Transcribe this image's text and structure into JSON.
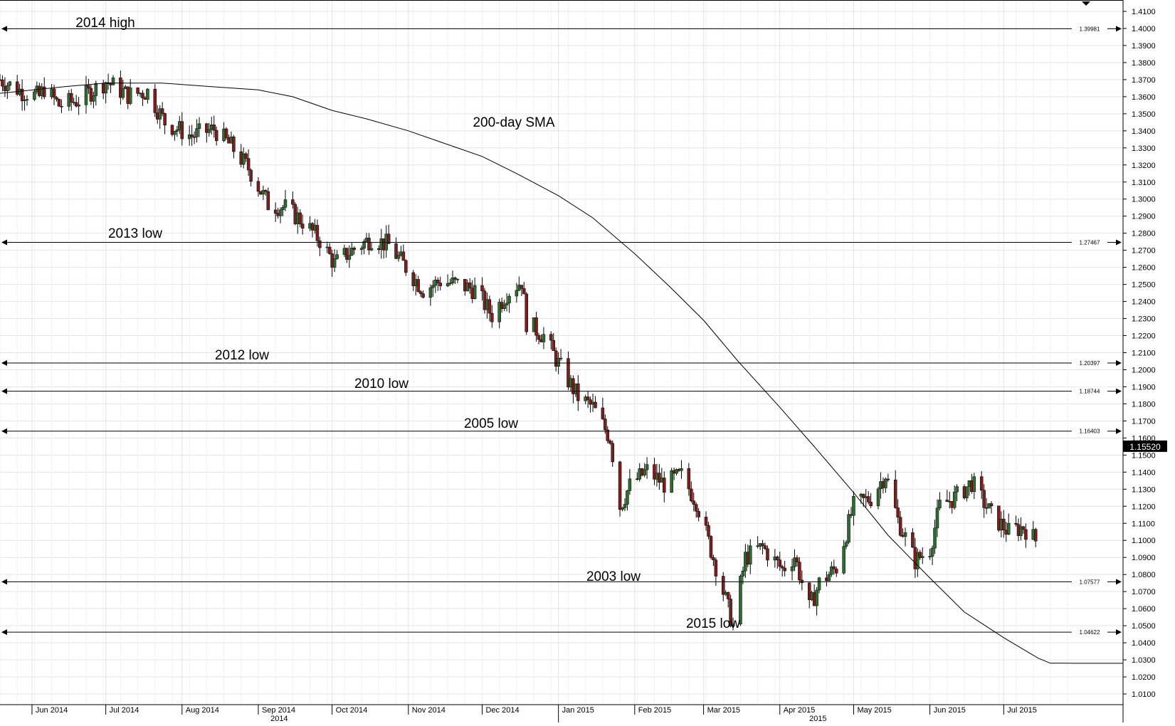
{
  "chart_data": {
    "type": "candlestick",
    "title": "",
    "xlabel": "",
    "ylabel": "",
    "ylim": [
      1.0,
      1.415
    ],
    "y_ticks": [
      "1.4100",
      "1.4000",
      "1.3900",
      "1.3800",
      "1.3700",
      "1.3600",
      "1.3500",
      "1.3400",
      "1.3300",
      "1.3200",
      "1.3100",
      "1.3000",
      "1.2900",
      "1.2800",
      "1.2700",
      "1.2600",
      "1.2500",
      "1.2400",
      "1.2300",
      "1.2200",
      "1.2100",
      "1.2000",
      "1.1900",
      "1.1800",
      "1.1700",
      "1.1600",
      "1.1500",
      "1.1400",
      "1.1300",
      "1.1200",
      "1.1100",
      "1.1000",
      "1.0900",
      "1.0800",
      "1.0700",
      "1.0600",
      "1.0500",
      "1.0400",
      "1.0300",
      "1.0200",
      "1.0100"
    ],
    "x_months": [
      "Jun 2014",
      "Jul 2014",
      "Aug 2014",
      "Sep 2014",
      "Oct 2014",
      "Nov 2014",
      "Dec 2014",
      "Jan 2015",
      "Feb 2015",
      "Mar 2015",
      "Apr 2015",
      "May 2015",
      "Jun 2015",
      "Jul 2015"
    ],
    "x_years": [
      "2014",
      "2015"
    ],
    "grid": true,
    "current_value": "1.15520",
    "levels": [
      {
        "label": "2014 high",
        "value": 1.39981,
        "tag": "1.39981"
      },
      {
        "label": "2013 low",
        "value": 1.27467,
        "tag": "1.27467"
      },
      {
        "label": "2012 low",
        "value": 1.20397,
        "tag": "1.20397"
      },
      {
        "label": "2010 low",
        "value": 1.18744,
        "tag": "1.18744"
      },
      {
        "label": "2005 low",
        "value": 1.16403,
        "tag": "1.16403"
      },
      {
        "label": "2003 low",
        "value": 1.07577,
        "tag": "1.07577"
      },
      {
        "label": "2015 low",
        "value": 1.04622,
        "tag": "1.04622"
      }
    ],
    "sma": {
      "label": "200-day SMA",
      "points": [
        [
          "2014-05-19",
          1.362
        ],
        [
          "2014-06-15",
          1.366
        ],
        [
          "2014-07-01",
          1.368
        ],
        [
          "2014-07-24",
          1.368
        ],
        [
          "2014-08-12",
          1.366
        ],
        [
          "2014-09-01",
          1.364
        ],
        [
          "2014-09-15",
          1.36
        ],
        [
          "2014-10-01",
          1.352
        ],
        [
          "2014-10-15",
          1.347
        ],
        [
          "2014-11-01",
          1.34
        ],
        [
          "2014-11-15",
          1.333
        ],
        [
          "2014-12-01",
          1.325
        ],
        [
          "2014-12-15",
          1.315
        ],
        [
          "2015-01-01",
          1.302
        ],
        [
          "2015-01-15",
          1.289
        ],
        [
          "2015-02-01",
          1.268
        ],
        [
          "2015-02-15",
          1.249
        ],
        [
          "2015-03-01",
          1.229
        ],
        [
          "2015-03-15",
          1.205
        ],
        [
          "2015-04-01",
          1.178
        ],
        [
          "2015-04-15",
          1.155
        ],
        [
          "2015-05-01",
          1.128
        ],
        [
          "2015-05-15",
          1.103
        ],
        [
          "2015-06-01",
          1.078
        ],
        [
          "2015-06-15",
          1.058
        ],
        [
          "2015-07-01",
          1.043
        ],
        [
          "2015-07-15",
          1.031
        ],
        [
          "2015-07-20",
          1.028
        ],
        [
          "2015-07-28",
          1.028
        ]
      ]
    },
    "price_path": [
      [
        "2014-05-19",
        1.37
      ],
      [
        "2014-05-28",
        1.363
      ],
      [
        "2014-06-04",
        1.36
      ],
      [
        "2014-06-06",
        1.365
      ],
      [
        "2014-06-12",
        1.355
      ],
      [
        "2014-06-20",
        1.358
      ],
      [
        "2014-07-01",
        1.369
      ],
      [
        "2014-07-10",
        1.361
      ],
      [
        "2014-07-18",
        1.363
      ],
      [
        "2014-07-25",
        1.345
      ],
      [
        "2014-08-05",
        1.337
      ],
      [
        "2014-08-14",
        1.341
      ],
      [
        "2014-08-21",
        1.331
      ],
      [
        "2014-08-28",
        1.318
      ],
      [
        "2014-09-05",
        1.297
      ],
      [
        "2014-09-12",
        1.295
      ],
      [
        "2014-09-19",
        1.287
      ],
      [
        "2014-09-26",
        1.276
      ],
      [
        "2014-10-02",
        1.262
      ],
      [
        "2014-10-09",
        1.27
      ],
      [
        "2014-10-17",
        1.277
      ],
      [
        "2014-10-24",
        1.273
      ],
      [
        "2014-10-31",
        1.26
      ],
      [
        "2014-11-07",
        1.247
      ],
      [
        "2014-11-14",
        1.252
      ],
      [
        "2014-11-21",
        1.25
      ],
      [
        "2014-11-28",
        1.247
      ],
      [
        "2014-12-05",
        1.232
      ],
      [
        "2014-12-11",
        1.245
      ],
      [
        "2014-12-17",
        1.252
      ],
      [
        "2014-12-19",
        1.228
      ],
      [
        "2014-12-26",
        1.22
      ],
      [
        "2015-01-02",
        1.201
      ],
      [
        "2015-01-09",
        1.184
      ],
      [
        "2015-01-15",
        1.178
      ],
      [
        "2015-01-22",
        1.16
      ],
      [
        "2015-01-26",
        1.12
      ],
      [
        "2015-01-30",
        1.132
      ],
      [
        "2015-02-06",
        1.141
      ],
      [
        "2015-02-13",
        1.133
      ],
      [
        "2015-02-20",
        1.138
      ],
      [
        "2015-02-26",
        1.123
      ],
      [
        "2015-03-06",
        1.085
      ],
      [
        "2015-03-13",
        1.05
      ],
      [
        "2015-03-18",
        1.09
      ],
      [
        "2015-03-25",
        1.096
      ],
      [
        "2015-04-02",
        1.083
      ],
      [
        "2015-04-07",
        1.091
      ],
      [
        "2015-04-13",
        1.06
      ],
      [
        "2015-04-17",
        1.075
      ],
      [
        "2015-04-24",
        1.084
      ],
      [
        "2015-05-01",
        1.12
      ],
      [
        "2015-05-08",
        1.125
      ],
      [
        "2015-05-14",
        1.139
      ],
      [
        "2015-05-19",
        1.112
      ],
      [
        "2015-05-26",
        1.088
      ],
      [
        "2015-06-01",
        1.095
      ],
      [
        "2015-06-05",
        1.12
      ],
      [
        "2015-06-12",
        1.126
      ],
      [
        "2015-06-18",
        1.134
      ],
      [
        "2015-06-26",
        1.115
      ],
      [
        "2015-07-03",
        1.105
      ],
      [
        "2015-07-09",
        1.108
      ],
      [
        "2015-07-14",
        1.1
      ]
    ]
  },
  "annotations": {
    "high_2014": "2014 high",
    "low_2013": "2013 low",
    "low_2012": "2012 low",
    "low_2010": "2010 low",
    "low_2005": "2005 low",
    "low_2003": "2003 low",
    "low_2015": "2015 low",
    "sma_label": "200-day SMA"
  },
  "colors": {
    "bull": "#2f6b2f",
    "bear": "#7a1e1e",
    "grid": "#e3e3e3",
    "line": "#000000",
    "price_box_bg": "#000000",
    "price_box_text": "#ffffff"
  }
}
